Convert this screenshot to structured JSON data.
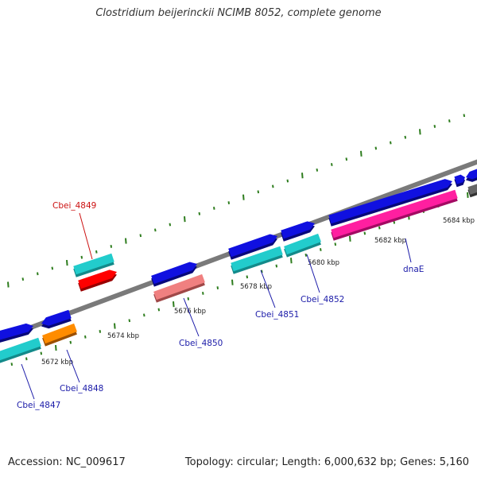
{
  "title": "Clostridium beijerinckii NCIMB 8052, complete genome",
  "footer": {
    "accession": "Accession: NC_009617",
    "summary": "Topology: circular; Length: 6,000,632 bp; Genes: 5,160"
  },
  "colors": {
    "backbone": "#7a7a7a",
    "tick": "#2e7d1e",
    "gene_label": "#1a1aa8",
    "highlight_label": "#cc1111",
    "forward_gene": "#1010e0",
    "rna_gene": "#22cccc"
  },
  "ticks": [
    {
      "label": "5672 kbp"
    },
    {
      "label": "5674 kbp"
    },
    {
      "label": "5676 kbp"
    },
    {
      "label": "5678 kbp"
    },
    {
      "label": "5680 kbp"
    },
    {
      "label": "5682 kbp"
    },
    {
      "label": "5684 kbp"
    }
  ],
  "genes": [
    {
      "name": "Cbei_4847",
      "highlight": false
    },
    {
      "name": "Cbei_4848",
      "highlight": false
    },
    {
      "name": "Cbei_4849",
      "highlight": true
    },
    {
      "name": "Cbei_4850",
      "highlight": false
    },
    {
      "name": "Cbei_4851",
      "highlight": false
    },
    {
      "name": "Cbei_4852",
      "highlight": false
    },
    {
      "name": "dnaE",
      "highlight": false
    }
  ]
}
